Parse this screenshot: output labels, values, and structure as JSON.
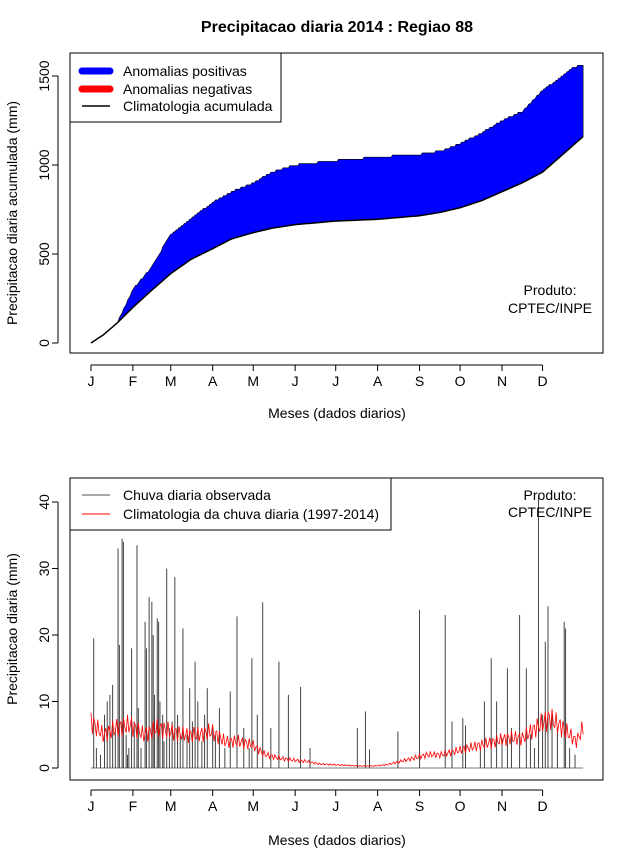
{
  "title": "Precipitacao diaria 2014 : Regiao 88",
  "chart_data": [
    {
      "type": "area",
      "ylabel": "Precipitacao diaria acumulada (mm)",
      "xlabel": "Meses (dados diarios)",
      "xtick_labels": [
        "J",
        "F",
        "M",
        "A",
        "M",
        "J",
        "J",
        "A",
        "S",
        "O",
        "N",
        "D"
      ],
      "xtick_days": [
        1,
        32,
        60,
        91,
        121,
        152,
        182,
        213,
        244,
        274,
        305,
        335
      ],
      "yticks": [
        0,
        500,
        1000,
        1500
      ],
      "ytick_labels": [
        "0",
        "500",
        "1000",
        "1500"
      ],
      "ylim": [
        0,
        1560
      ],
      "xlim": [
        1,
        365
      ],
      "legend": {
        "position": "top-left",
        "items": [
          {
            "label": "Anomalias positivas",
            "color": "#0000ff"
          },
          {
            "label": "Anomalias negativas",
            "color": "#ff0000"
          },
          {
            "label": "Climatologia acumulada",
            "color": "#000000"
          }
        ]
      },
      "annotation": [
        "Produto:",
        "CPTEC/INPE"
      ],
      "observed_cumulative": {
        "day": [
          1,
          10,
          20,
          32,
          45,
          60,
          75,
          91,
          105,
          121,
          135,
          152,
          182,
          213,
          244,
          260,
          274,
          290,
          305,
          320,
          335,
          350,
          358,
          365
        ],
        "value": [
          0,
          40,
          110,
          300,
          420,
          610,
          700,
          790,
          850,
          900,
          960,
          1000,
          1025,
          1045,
          1060,
          1080,
          1120,
          1180,
          1250,
          1300,
          1420,
          1500,
          1550,
          1560
        ]
      },
      "climatology_cumulative": {
        "day": [
          1,
          10,
          20,
          32,
          45,
          60,
          75,
          91,
          105,
          121,
          135,
          152,
          182,
          213,
          244,
          260,
          274,
          290,
          305,
          320,
          335,
          350,
          365
        ],
        "value": [
          0,
          45,
          110,
          200,
          290,
          390,
          470,
          530,
          585,
          620,
          645,
          665,
          685,
          695,
          715,
          735,
          760,
          800,
          850,
          900,
          960,
          1060,
          1160
        ]
      }
    },
    {
      "type": "bar",
      "ylabel": "Precipitacao diaria (mm)",
      "xlabel": "Meses (dados diarios)",
      "xtick_labels": [
        "J",
        "F",
        "M",
        "A",
        "M",
        "J",
        "J",
        "A",
        "S",
        "O",
        "N",
        "D"
      ],
      "xtick_days": [
        1,
        32,
        60,
        91,
        121,
        152,
        182,
        213,
        244,
        274,
        305,
        335
      ],
      "yticks": [
        0,
        10,
        20,
        30,
        40
      ],
      "ytick_labels": [
        "0",
        "10",
        "20",
        "30",
        "40"
      ],
      "ylim": [
        0,
        41
      ],
      "xlim": [
        1,
        365
      ],
      "legend": {
        "position": "top-left",
        "items": [
          {
            "label": "Chuva diaria observada",
            "color": "#555555"
          },
          {
            "label": "Climatologia da chuva diaria (1997-2014)",
            "color": "#ff0000"
          }
        ]
      },
      "annotation": [
        "Produto:",
        "CPTEC/INPE"
      ],
      "observed_daily": {
        "day": [
          3,
          5,
          8,
          11,
          13,
          15,
          17,
          19,
          21,
          22,
          24,
          25,
          27,
          28,
          29,
          31,
          33,
          35,
          36,
          38,
          41,
          42,
          44,
          46,
          47,
          48,
          50,
          51,
          52,
          54,
          55,
          57,
          59,
          61,
          63,
          65,
          67,
          69,
          72,
          74,
          76,
          78,
          80,
          83,
          85,
          87,
          91,
          93,
          96,
          100,
          104,
          109,
          114,
          118,
          120,
          124,
          128,
          134,
          140,
          147,
          156,
          163,
          198,
          204,
          207,
          228,
          244,
          263,
          268,
          276,
          278,
          289,
          292,
          297,
          301,
          305,
          309,
          312,
          318,
          323,
          326,
          329,
          332,
          335,
          337,
          339,
          342,
          346,
          351,
          352,
          355,
          359
        ],
        "value": [
          19.5,
          3,
          2,
          8,
          10,
          11,
          12.5,
          6,
          33,
          18.5,
          34.5,
          34,
          5,
          2,
          3,
          18,
          7,
          33.5,
          9,
          3,
          22,
          18,
          25.7,
          25,
          20,
          11,
          22.5,
          22,
          10,
          8,
          4,
          30,
          6,
          7,
          28.7,
          8,
          5,
          21,
          5,
          12,
          7,
          16,
          10,
          4,
          8,
          12,
          6,
          5,
          9,
          3,
          11.5,
          22.8,
          6,
          3,
          16.5,
          8,
          24.9,
          6,
          16,
          11,
          12.2,
          3,
          6,
          8.5,
          2.8,
          5.5,
          23.8,
          23,
          7,
          7.5,
          6.4,
          3,
          10,
          16.5,
          10,
          4.5,
          15,
          6,
          23,
          15,
          5,
          3,
          41,
          8,
          19,
          24.3,
          8,
          6,
          22,
          21,
          3,
          2
        ]
      },
      "climatology_daily": {
        "day": [
          1,
          10,
          20,
          30,
          40,
          50,
          60,
          70,
          80,
          90,
          100,
          110,
          120,
          130,
          140,
          150,
          160,
          170,
          180,
          190,
          200,
          210,
          220,
          230,
          240,
          250,
          260,
          270,
          280,
          290,
          300,
          310,
          320,
          330,
          340,
          350,
          360,
          365
        ],
        "value": [
          7,
          5,
          6,
          6.5,
          5,
          6,
          5.5,
          5,
          5,
          5.5,
          4,
          4,
          3.5,
          2,
          1.5,
          1.2,
          1,
          0.6,
          0.5,
          0.4,
          0.3,
          0.3,
          0.5,
          1,
          1.5,
          2,
          2,
          2.5,
          3,
          3.5,
          4,
          4.5,
          4.5,
          6,
          7.5,
          6,
          4,
          6
        ]
      }
    }
  ]
}
